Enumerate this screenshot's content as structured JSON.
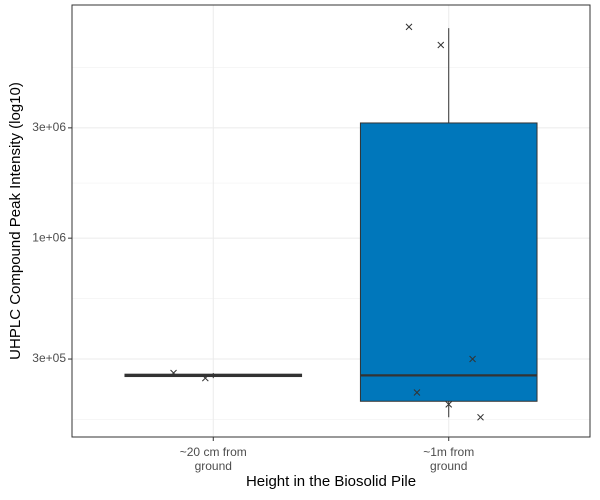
{
  "chart_data": {
    "type": "boxplot",
    "x_label": "Height in the Biosolid Pile",
    "y_label": "UHPLC Compound Peak Intensity (log10)",
    "log_scale": true,
    "grid": true,
    "ylim": [
      138000,
      10200000
    ],
    "yticks": [
      {
        "value": 300000,
        "label": "3e+05"
      },
      {
        "value": 1000000,
        "label": "1e+06"
      },
      {
        "value": 3000000,
        "label": "3e+06"
      }
    ],
    "categories": [
      [
        "~20 cm from",
        "ground"
      ],
      [
        "~1m from",
        "ground"
      ]
    ],
    "boxes": [
      {
        "fill": "#ffffff",
        "min": 248000,
        "q1": 252000,
        "median": 255000,
        "q3": 258000,
        "max": 261000,
        "points": [
          261000,
          248000
        ]
      },
      {
        "fill": "#0077bb",
        "min": 168000,
        "q1": 197000,
        "median": 255000,
        "q3": 3150000,
        "max": 8100000,
        "points": [
          8200000,
          6850000,
          300000,
          215000,
          191000,
          168000
        ]
      }
    ]
  }
}
